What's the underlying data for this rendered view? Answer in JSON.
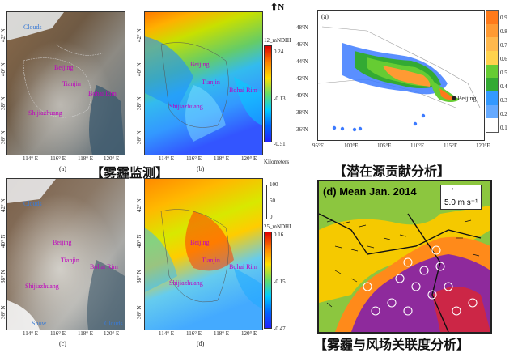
{
  "panels": {
    "a": {
      "label": "(a)",
      "xticks": [
        "114° E",
        "116° E",
        "118° E",
        "120° E"
      ],
      "yticks": [
        "42° N",
        "40° N",
        "38° N",
        "36° N"
      ],
      "cities": [
        "Clouds",
        "Beijing",
        "Tianjin",
        "Bohai Rim",
        "Shijiazhuang"
      ]
    },
    "b": {
      "label": "(b)",
      "xticks": [
        "114° E",
        "116° E",
        "118° E",
        "120° E"
      ],
      "yticks": [
        "42° N",
        "40° N",
        "38° N",
        "36° N"
      ],
      "cities": [
        "Beijing",
        "Tianjin",
        "Bohai Rim",
        "Shijiazhuang"
      ],
      "colorbar": {
        "title": "12_mNDHI",
        "max": "0.24",
        "mid": "-0.13",
        "min": "-0.51"
      },
      "north": "N",
      "scale_label": "Kilometers"
    },
    "c": {
      "label": "(c)",
      "xticks": [
        "114° E",
        "116° E",
        "118° E",
        "120° E"
      ],
      "yticks": [
        "42° N",
        "40° N",
        "38° N",
        "36° N"
      ],
      "cities": [
        "Clouds",
        "Beijing",
        "Tianjin",
        "Bohai Rim",
        "Shijiazhuang",
        "Snow",
        "Clouds"
      ]
    },
    "d": {
      "label": "(d)",
      "xticks": [
        "114° E",
        "116° E",
        "118° E",
        "120° E"
      ],
      "yticks": [
        "42° N",
        "40° N",
        "38° N",
        "36° N"
      ],
      "cities": [
        "Beijing",
        "Tianjin",
        "Bohai Rim",
        "Shijiazhuang"
      ],
      "colorbar": {
        "title": "25_mNDHI",
        "max": "0.16",
        "mid": "-0.15",
        "min": "-0.47"
      },
      "scale_ticks": [
        "100",
        "50",
        "0"
      ]
    },
    "source": {
      "label": "(a)",
      "xticks": [
        "95°E",
        "100°E",
        "105°E",
        "110°E",
        "115°E",
        "120°E"
      ],
      "yticks": [
        "48°N",
        "46°N",
        "44°N",
        "42°N",
        "40°N",
        "38°N",
        "36°N"
      ],
      "city": "Beijing",
      "colorbar": [
        "0.9",
        "0.8",
        "0.7",
        "0.6",
        "0.5",
        "0.4",
        "0.3",
        "0.2",
        "0.1"
      ],
      "colors": [
        "#ff7a1a",
        "#ff9a33",
        "#ffb84d",
        "#ffd24d",
        "#66cc33",
        "#33aa33",
        "#3399ff",
        "#66aaff",
        "#ffffff"
      ]
    },
    "wind": {
      "title": "(d) Mean Jan. 2014",
      "vector_label": "5.0 m s⁻¹"
    }
  },
  "captions": {
    "haze": "【雾霾监测】",
    "source": "【潜在源贡献分析】",
    "wind": "【雾霾与风场关联度分析】"
  }
}
